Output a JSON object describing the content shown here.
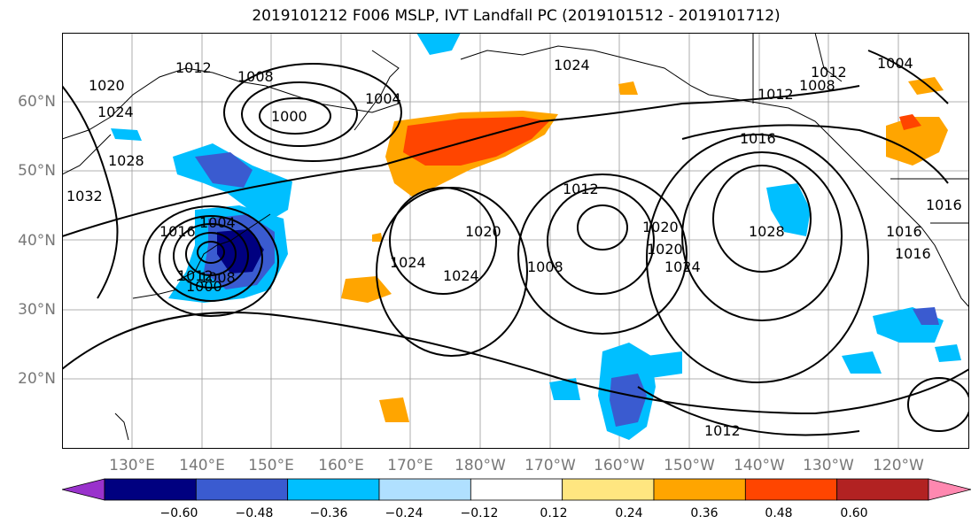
{
  "title": "2019101212 F006 MSLP, IVT Landfall PC (2019101512 - 2019101712)",
  "lat_labels": [
    "60°N",
    "50°N",
    "40°N",
    "30°N",
    "20°N"
  ],
  "lon_labels": [
    "130°E",
    "140°E",
    "150°E",
    "160°E",
    "170°E",
    "180°W",
    "170°W",
    "160°W",
    "150°W",
    "140°W",
    "130°W",
    "120°W"
  ],
  "isobar_labels": [
    "1012",
    "1008",
    "1000",
    "1004",
    "1020",
    "1024",
    "1028",
    "1032",
    "1016",
    "1004",
    "1008",
    "1000",
    "1024",
    "1012",
    "1016",
    "1008",
    "1004",
    "1016",
    "1012",
    "1020",
    "1024",
    "1028",
    "1016",
    "1020",
    "1012",
    "1016",
    "1024",
    "1008",
    "1012",
    "1020",
    "1024",
    "1012"
  ],
  "colorbar": {
    "ticks": [
      "−0.60",
      "−0.48",
      "−0.36",
      "−0.24",
      "−0.12",
      "0.12",
      "0.24",
      "0.36",
      "0.48",
      "0.60"
    ],
    "colors": [
      "#9932cc",
      "#000080",
      "#3a5bd0",
      "#00bfff",
      "#b0e0ff",
      "#ffffff",
      "#ffe680",
      "#ffa500",
      "#ff4500",
      "#b22222",
      "#ff88b0"
    ]
  }
}
